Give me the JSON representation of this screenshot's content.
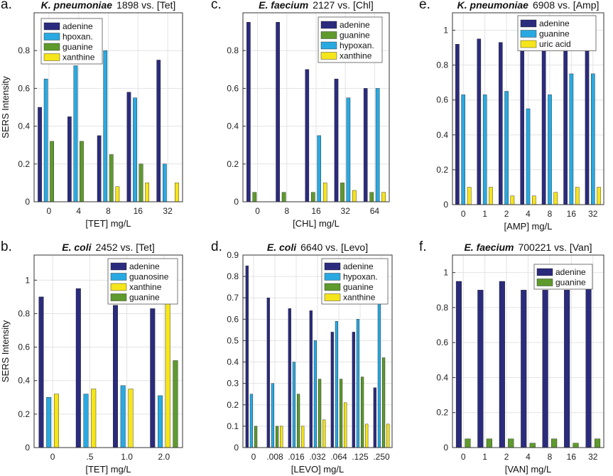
{
  "colors": {
    "adenine": "#2b2b7e",
    "hypoxanthine": "#29a9e1",
    "guanine": "#5e9a2c",
    "xanthine": "#f5e51b",
    "uric_acid": "#f5e51b",
    "highlight": "#e0221a",
    "axis": "#333333",
    "grid": "#e3e3e3"
  },
  "chart_data": [
    {
      "panel_letter": "a.",
      "title": {
        "organism": "K. pneumoniae",
        "rest": "1898 vs. [Tet]"
      },
      "type": "bar",
      "categories": [
        "0",
        "4",
        "8",
        "16",
        "32"
      ],
      "highlight_category": "16",
      "xlabel": "[TET] mg/L",
      "ylabel": "SERS Intensity",
      "ylim": [
        0,
        1.0
      ],
      "yticks": [
        "0",
        "0.2",
        "0.4",
        "0.6",
        "0.8"
      ],
      "ytick_values": [
        0,
        0.2,
        0.4,
        0.6,
        0.8
      ],
      "grid": true,
      "legend_position": "top-left",
      "series": [
        {
          "name": "adenine",
          "color_key": "adenine",
          "values": [
            0.5,
            0.45,
            0.35,
            0.58,
            0.75
          ]
        },
        {
          "name": "hpoxan.",
          "color_key": "hypoxanthine",
          "values": [
            0.65,
            0.72,
            0.8,
            0.55,
            0.2
          ]
        },
        {
          "name": "guanine",
          "color_key": "guanine",
          "values": [
            0.32,
            0.32,
            0.25,
            0.2,
            0.0
          ]
        },
        {
          "name": "xanthine",
          "color_key": "xanthine",
          "values": [
            0.0,
            0.0,
            0.08,
            0.1,
            0.1
          ]
        }
      ]
    },
    {
      "panel_letter": "c.",
      "title": {
        "organism": "E. faecium",
        "rest": "2127 vs. [Chl]"
      },
      "type": "bar",
      "categories": [
        "0",
        "8",
        "16",
        "32",
        "64"
      ],
      "highlight_category": "32",
      "xlabel": "[CHL] mg/L",
      "ylabel": "",
      "ylim": [
        0,
        1.0
      ],
      "yticks": [
        "0",
        "0.2",
        "0.4",
        "0.6",
        "0.8"
      ],
      "ytick_values": [
        0,
        0.2,
        0.4,
        0.6,
        0.8
      ],
      "grid": true,
      "legend_position": "top-right",
      "series": [
        {
          "name": "adenine",
          "color_key": "adenine",
          "values": [
            0.95,
            0.95,
            0.7,
            0.65,
            0.6
          ]
        },
        {
          "name": "guanine",
          "color_key": "guanine",
          "values": [
            0.05,
            0.05,
            0.05,
            0.1,
            0.05
          ]
        },
        {
          "name": "hypoxan.",
          "color_key": "hypoxanthine",
          "values": [
            0.0,
            0.0,
            0.35,
            0.55,
            0.6
          ]
        },
        {
          "name": "xanthine",
          "color_key": "xanthine",
          "values": [
            0.0,
            0.0,
            0.1,
            0.06,
            0.05
          ]
        }
      ]
    },
    {
      "panel_letter": "e.",
      "title": {
        "organism": "K. pneumoniae",
        "rest": "6908 vs. [Amp]"
      },
      "type": "bar",
      "categories": [
        "0",
        "1",
        "2",
        "4",
        "8",
        "16",
        "32"
      ],
      "highlight_category": "",
      "xlabel": "[AMP] mg/L",
      "ylabel": "",
      "ylim": [
        0,
        1.1
      ],
      "yticks": [
        "0",
        "0.2",
        "0.4",
        "0.6",
        "0.8",
        "1"
      ],
      "ytick_values": [
        0,
        0.2,
        0.4,
        0.6,
        0.8,
        1.0
      ],
      "grid": true,
      "legend_position": "top-right",
      "series": [
        {
          "name": "adenine",
          "color_key": "adenine",
          "values": [
            0.92,
            0.95,
            0.93,
            0.95,
            0.93,
            0.9,
            0.9
          ]
        },
        {
          "name": "guanine",
          "color_key": "hypoxanthine",
          "values": [
            0.63,
            0.63,
            0.65,
            0.55,
            0.63,
            0.75,
            0.75
          ]
        },
        {
          "name": "uric acid",
          "color_key": "uric_acid",
          "values": [
            0.1,
            0.1,
            0.05,
            0.05,
            0.07,
            0.1,
            0.1
          ]
        }
      ]
    },
    {
      "panel_letter": "b.",
      "title": {
        "organism": "E. coli",
        "rest": "2452 vs. [Tet]"
      },
      "type": "bar",
      "categories": [
        "0",
        ".5",
        "1.0",
        "2.0"
      ],
      "highlight_category": "2.0",
      "xlabel": "[TET] mg/L",
      "ylabel": "SERS Intensity",
      "ylim": [
        0,
        1.15
      ],
      "yticks": [
        "0",
        "0.2",
        "0.4",
        "0.6",
        "0.8",
        "1"
      ],
      "ytick_values": [
        0,
        0.2,
        0.4,
        0.6,
        0.8,
        1.0
      ],
      "grid": true,
      "legend_position": "top-right",
      "series": [
        {
          "name": "adenine",
          "color_key": "adenine",
          "values": [
            0.9,
            0.95,
            0.85,
            0.83
          ]
        },
        {
          "name": "guanosine",
          "color_key": "hypoxanthine",
          "values": [
            0.3,
            0.32,
            0.37,
            0.31
          ]
        },
        {
          "name": "xanthine",
          "color_key": "xanthine",
          "values": [
            0.32,
            0.35,
            0.35,
            1.04
          ]
        },
        {
          "name": "guanine",
          "color_key": "guanine",
          "values": [
            0.0,
            0.0,
            0.0,
            0.52
          ]
        }
      ]
    },
    {
      "panel_letter": "d.",
      "title": {
        "organism": "E. coli",
        "rest": "6640 vs. [Levo]"
      },
      "type": "bar",
      "categories": [
        "0",
        ".008",
        ".016",
        ".032",
        ".064",
        ".125",
        ".250"
      ],
      "highlight_category": ".032",
      "xlabel": "[LEVO] mg/L",
      "ylabel": "",
      "ylim": [
        0,
        0.9
      ],
      "yticks": [
        "0",
        "0.1",
        "0.2",
        "0.3",
        "0.4",
        "0.5",
        "0.6",
        "0.7",
        "0.8",
        "0.9"
      ],
      "ytick_values": [
        0,
        0.1,
        0.2,
        0.3,
        0.4,
        0.5,
        0.6,
        0.7,
        0.8,
        0.9
      ],
      "grid": true,
      "legend_position": "top-right",
      "series": [
        {
          "name": "adenine",
          "color_key": "adenine",
          "values": [
            0.85,
            0.7,
            0.65,
            0.64,
            0.54,
            0.54,
            0.28
          ]
        },
        {
          "name": "hypoxan.",
          "color_key": "hypoxanthine",
          "values": [
            0.25,
            0.3,
            0.4,
            0.5,
            0.59,
            0.6,
            0.82
          ]
        },
        {
          "name": "guanine",
          "color_key": "guanine",
          "values": [
            0.1,
            0.1,
            0.25,
            0.32,
            0.32,
            0.33,
            0.42
          ]
        },
        {
          "name": "xanthine",
          "color_key": "xanthine",
          "values": [
            0.0,
            0.1,
            0.1,
            0.13,
            0.21,
            0.11,
            0.11
          ]
        }
      ]
    },
    {
      "panel_letter": "f.",
      "title": {
        "organism": "E. faecium",
        "rest": "700221 vs. [Van]"
      },
      "type": "bar",
      "categories": [
        "0",
        "1",
        "2",
        "4",
        "8",
        "16",
        "32"
      ],
      "highlight_category": "",
      "xlabel": "[VAN] mg/L",
      "ylabel": "",
      "ylim": [
        0,
        1.1
      ],
      "yticks": [
        "0",
        "0.2",
        "0.4",
        "0.6",
        "0.8",
        "1"
      ],
      "ytick_values": [
        0,
        0.2,
        0.4,
        0.6,
        0.8,
        1.0
      ],
      "grid": true,
      "legend_position": "top-right",
      "series": [
        {
          "name": "adenine",
          "color_key": "adenine",
          "values": [
            0.95,
            0.9,
            0.95,
            0.9,
            0.9,
            0.9,
            0.95
          ]
        },
        {
          "name": "guanine",
          "color_key": "guanine",
          "values": [
            0.05,
            0.05,
            0.05,
            0.025,
            0.05,
            0.025,
            0.05
          ]
        }
      ]
    }
  ]
}
